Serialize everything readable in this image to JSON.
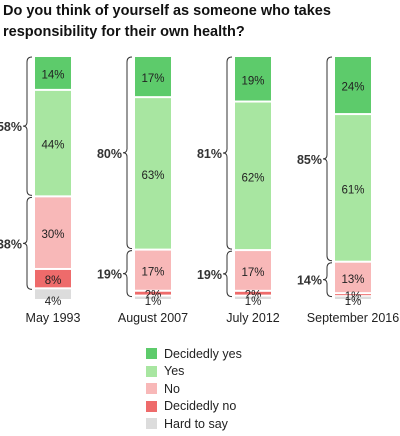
{
  "title": "Do you think of yourself as someone who takes responsibility for their own health?",
  "chart_data": {
    "type": "bar",
    "stacked": true,
    "orientation": "vertical",
    "categories": [
      "May 1993",
      "August 2007",
      "July 2012",
      "September 2016"
    ],
    "series": [
      {
        "name": "Decidedly yes",
        "color": "#5dcb6b",
        "values": [
          14,
          17,
          19,
          24
        ]
      },
      {
        "name": "Yes",
        "color": "#a8e6a1",
        "values": [
          44,
          63,
          62,
          61
        ]
      },
      {
        "name": "No",
        "color": "#f8b8b8",
        "values": [
          30,
          17,
          17,
          13
        ]
      },
      {
        "name": "Decidedly no",
        "color": "#ee6b6b",
        "values": [
          8,
          2,
          2,
          1
        ]
      },
      {
        "name": "Hard to say",
        "color": "#dcdcdc",
        "values": [
          4,
          1,
          1,
          1
        ]
      }
    ],
    "value_labels": {
      "Decidedly yes": [
        "14%",
        "17%",
        "19%",
        "24%"
      ],
      "Yes": [
        "44%",
        "63%",
        "62%",
        "61%"
      ],
      "No": [
        "30%",
        "17%",
        "17%",
        "13%"
      ],
      "Decidedly no": [
        "8%",
        "2%",
        "2%",
        "1%"
      ],
      "Hard to say": [
        "4%",
        "1%",
        "1%",
        "1%"
      ]
    },
    "totals": {
      "yes": [
        "58%",
        "80%",
        "81%",
        "85%"
      ],
      "no": [
        "38%",
        "19%",
        "19%",
        "14%"
      ]
    },
    "ylim": [
      0,
      100
    ],
    "grid": false,
    "legend_position": "bottom"
  }
}
